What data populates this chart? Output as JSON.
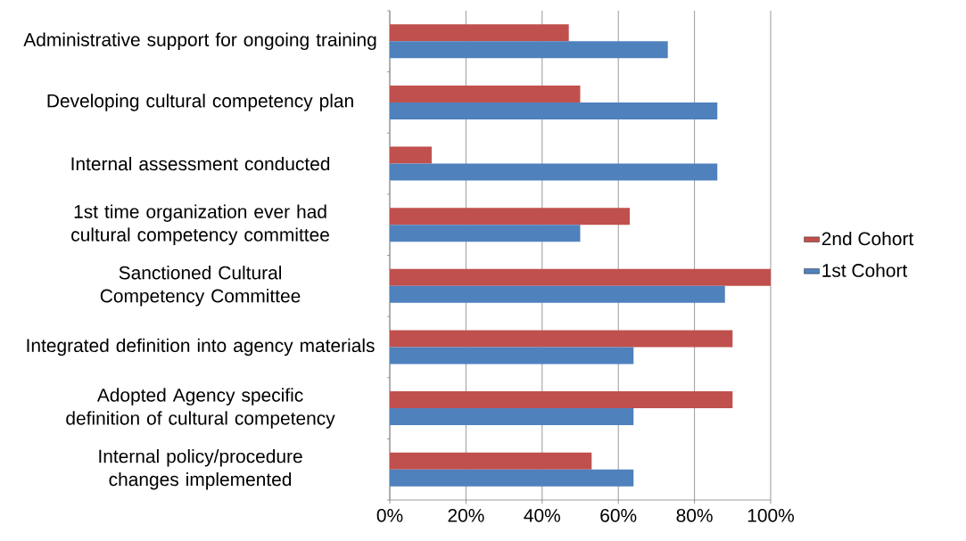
{
  "chart_data": {
    "type": "bar",
    "orientation": "horizontal",
    "categories": [
      "Administrative support for ongoing training",
      "Developing cultural competency plan",
      "Internal assessment conducted",
      "1st time organization ever had cultural competency committee",
      "Sanctioned Cultural Competency Committee",
      "Integrated definition into agency materials",
      "Adopted Agency specific definition of cultural competency",
      "Internal policy/procedure changes implemented"
    ],
    "series": [
      {
        "name": "2nd Cohort",
        "color": "#c0504d",
        "values": [
          47,
          50,
          11,
          63,
          100,
          90,
          90,
          53
        ]
      },
      {
        "name": "1st Cohort",
        "color": "#4f81bd",
        "values": [
          73,
          86,
          86,
          50,
          88,
          64,
          64,
          64
        ]
      }
    ],
    "xlim": [
      0,
      100
    ],
    "xticks": [
      {
        "value": 0,
        "label": "0%"
      },
      {
        "value": 20,
        "label": "20%"
      },
      {
        "value": 40,
        "label": "40%"
      },
      {
        "value": 60,
        "label": "60%"
      },
      {
        "value": 80,
        "label": "80%"
      },
      {
        "value": 100,
        "label": "100%"
      }
    ],
    "grid": "x",
    "legend": "right"
  }
}
